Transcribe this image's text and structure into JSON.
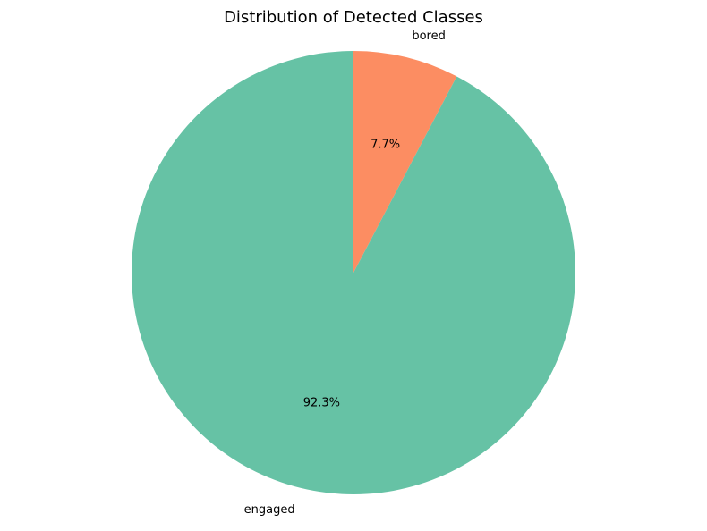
{
  "chart_data": {
    "type": "pie",
    "title": "Distribution of Detected Classes",
    "start_angle_deg": 90,
    "direction": "clockwise",
    "slices": [
      {
        "label": "bored",
        "value": 7.7,
        "pct_label": "7.7%",
        "color": "#fc8d62"
      },
      {
        "label": "engaged",
        "value": 92.3,
        "pct_label": "92.3%",
        "color": "#66c2a5"
      }
    ]
  }
}
